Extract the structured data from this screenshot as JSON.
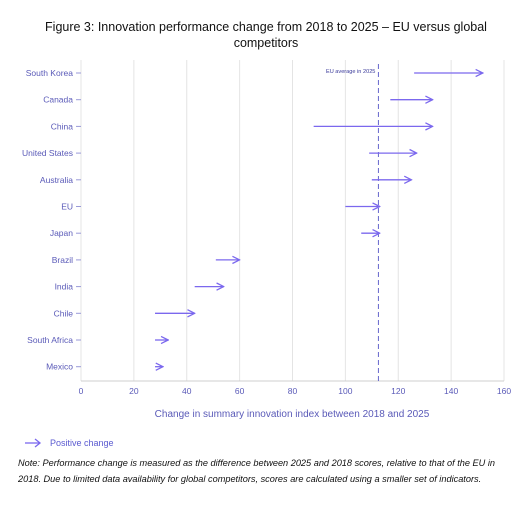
{
  "figure": {
    "title_line1": "Figure 3: Innovation performance change from 2018 to 2025 – EU versus global",
    "title_line2": "competitors"
  },
  "chart_data": {
    "type": "arrow",
    "title": "Figure 3: Innovation performance change from 2018 to 2025 – EU versus global competitors",
    "xlabel": "Change in summary innovation index between 2018 and 2025",
    "ylabel": "",
    "xlim": [
      0,
      160
    ],
    "xticks": [
      0,
      20,
      40,
      60,
      80,
      100,
      120,
      140,
      160
    ],
    "grid": "vertical",
    "categories": [
      "South Korea",
      "Canada",
      "China",
      "United States",
      "Australia",
      "EU",
      "Japan",
      "Brazil",
      "India",
      "Chile",
      "South Africa",
      "Mexico"
    ],
    "series": [
      {
        "name": "Positive change",
        "start_2018": [
          126,
          117,
          88,
          109,
          110,
          100,
          106,
          51,
          43,
          28,
          28,
          28
        ],
        "end_2025": [
          152,
          133,
          133,
          127,
          125,
          113,
          113,
          60,
          54,
          43,
          33,
          31
        ]
      }
    ],
    "reference_line": {
      "value": 112.5,
      "label": "EU average in 2025"
    },
    "legend": "bottom-left",
    "colors": {
      "arrow": "#7b68ee",
      "grid": "#e4e4e4",
      "axis_text": "#5a5ab8",
      "reference": "#6666cc"
    }
  },
  "legend": {
    "label": "Positive change"
  },
  "note": "Note: Performance change is measured as the difference between 2025 and 2018 scores, relative to that of the EU in 2018. Due to limited data availability for global competitors, scores are calculated using a smaller set of indicators."
}
